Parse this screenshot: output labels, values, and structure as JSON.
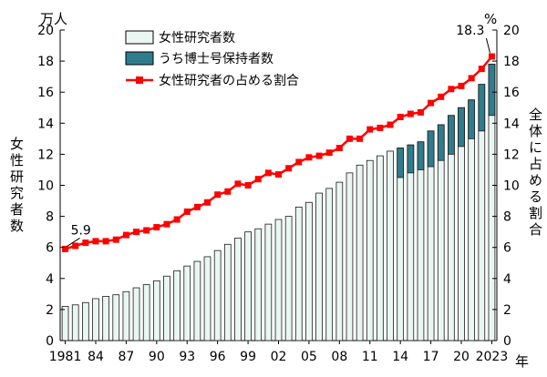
{
  "chart_data": {
    "type": "bar",
    "left_unit": "万人",
    "right_unit": "%",
    "x_unit": "年",
    "y_left_label": "女性研究者数",
    "y_right_label": "全体に占める割合",
    "ylim_left": [
      0,
      20
    ],
    "ylim_right": [
      0,
      20
    ],
    "y_ticks": [
      "0",
      "2",
      "4",
      "6",
      "8",
      "10",
      "12",
      "14",
      "16",
      "18",
      "20"
    ],
    "x_ticks": [
      {
        "year": 1981,
        "label": "1981"
      },
      {
        "year": 1984,
        "label": "84"
      },
      {
        "year": 1987,
        "label": "87"
      },
      {
        "year": 1990,
        "label": "90"
      },
      {
        "year": 1993,
        "label": "93"
      },
      {
        "year": 1996,
        "label": "96"
      },
      {
        "year": 1999,
        "label": "99"
      },
      {
        "year": 2002,
        "label": "02"
      },
      {
        "year": 2005,
        "label": "05"
      },
      {
        "year": 2008,
        "label": "08"
      },
      {
        "year": 2011,
        "label": "11"
      },
      {
        "year": 2014,
        "label": "14"
      },
      {
        "year": 2017,
        "label": "17"
      },
      {
        "year": 2020,
        "label": "20"
      },
      {
        "year": 2023,
        "label": "2023"
      }
    ],
    "legend": [
      {
        "name": "女性研究者数",
        "kind": "bar",
        "fill": "#eaf6f2"
      },
      {
        "name": "うち博士号保持者数",
        "kind": "bar",
        "fill": "#2f7d8c"
      },
      {
        "name": "女性研究者の占める割合",
        "kind": "line",
        "color": "#ff0000"
      }
    ],
    "years": [
      1981,
      1982,
      1983,
      1984,
      1985,
      1986,
      1987,
      1988,
      1989,
      1990,
      1991,
      1992,
      1993,
      1994,
      1995,
      1996,
      1997,
      1998,
      1999,
      2000,
      2001,
      2002,
      2003,
      2004,
      2005,
      2006,
      2007,
      2008,
      2009,
      2010,
      2011,
      2012,
      2013,
      2014,
      2015,
      2016,
      2017,
      2018,
      2019,
      2020,
      2021,
      2022,
      2023
    ],
    "female_researchers": [
      2.2,
      2.3,
      2.45,
      2.7,
      2.85,
      2.95,
      3.15,
      3.4,
      3.6,
      3.85,
      4.15,
      4.5,
      4.8,
      5.1,
      5.4,
      5.8,
      6.2,
      6.6,
      7.0,
      7.2,
      7.5,
      7.8,
      8.0,
      8.6,
      8.9,
      9.5,
      9.8,
      10.2,
      10.8,
      11.3,
      11.6,
      11.9,
      12.2,
      12.4,
      12.6,
      12.8,
      13.5,
      13.9,
      14.5,
      15.0,
      15.5,
      16.5,
      17.8
    ],
    "doctoral_holders": [
      null,
      null,
      null,
      null,
      null,
      null,
      null,
      null,
      null,
      null,
      null,
      null,
      null,
      null,
      null,
      null,
      null,
      null,
      null,
      null,
      null,
      null,
      null,
      null,
      null,
      null,
      null,
      null,
      null,
      null,
      null,
      null,
      null,
      10.5,
      10.8,
      11.0,
      11.2,
      11.6,
      12.0,
      12.5,
      13.0,
      13.5,
      14.5
    ],
    "share_percent": [
      5.9,
      6.1,
      6.3,
      6.4,
      6.4,
      6.5,
      6.8,
      7.0,
      7.1,
      7.3,
      7.5,
      7.8,
      8.3,
      8.6,
      8.9,
      9.4,
      9.6,
      10.1,
      10.0,
      10.4,
      10.8,
      10.7,
      11.1,
      11.5,
      11.8,
      11.9,
      12.1,
      12.4,
      13.0,
      13.0,
      13.6,
      13.7,
      13.9,
      14.4,
      14.6,
      14.7,
      15.3,
      15.7,
      16.2,
      16.4,
      16.9,
      17.5,
      18.3
    ],
    "annotations": [
      {
        "year": 1981,
        "text": "5.9"
      },
      {
        "year": 2023,
        "text": "18.3"
      }
    ]
  }
}
